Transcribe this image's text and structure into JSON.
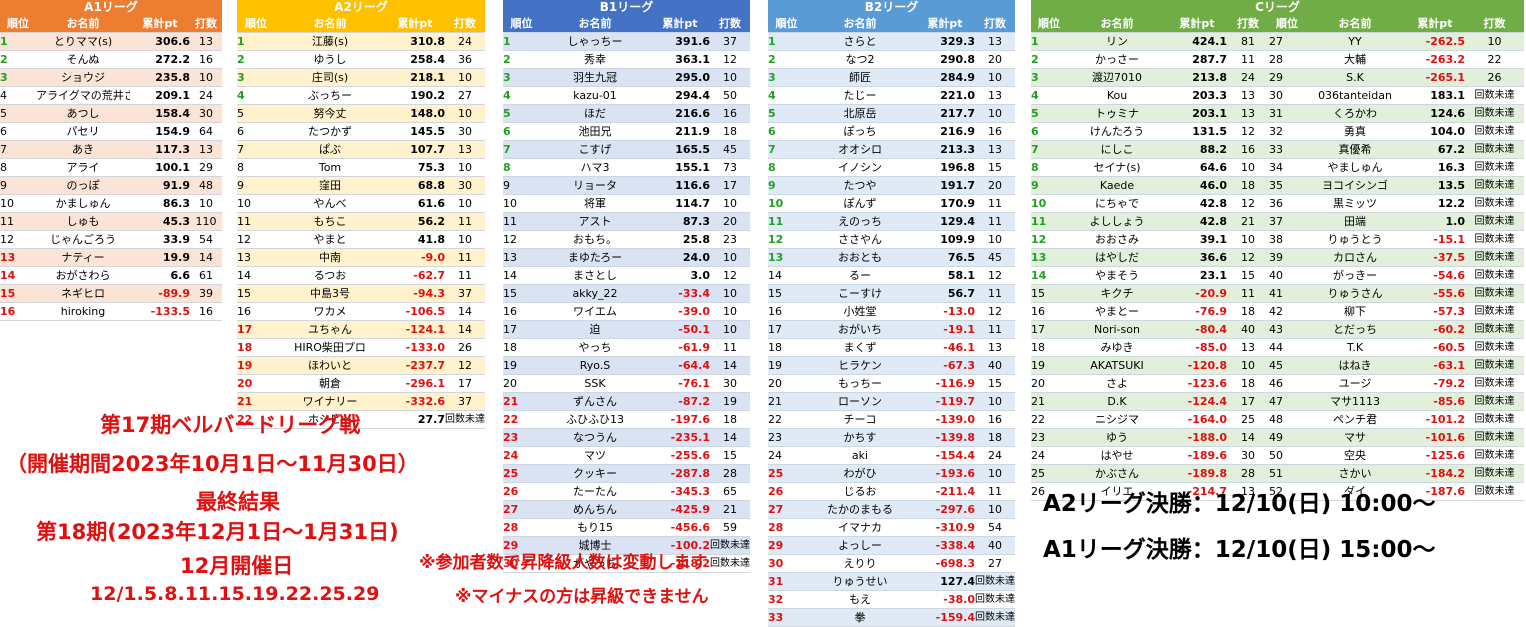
{
  "leagues": {
    "a1": {
      "title": "A1リーグ",
      "headers": [
        "順位",
        "お名前",
        "累計pt",
        "打数"
      ],
      "colors": {
        "header": "#ed7d31",
        "stripe": "#fbe4d5"
      },
      "rows": [
        [
          "1",
          "とりママ(s)",
          "306.6",
          "13"
        ],
        [
          "2",
          "そんぬ",
          "272.2",
          "16"
        ],
        [
          "3",
          "ショウジ",
          "235.8",
          "10"
        ],
        [
          "4",
          "アライグマの荒井さん",
          "209.1",
          "24"
        ],
        [
          "5",
          "あつし",
          "158.4",
          "30"
        ],
        [
          "6",
          "パセリ",
          "154.9",
          "64"
        ],
        [
          "7",
          "あき",
          "117.3",
          "13"
        ],
        [
          "8",
          "アライ",
          "100.1",
          "29"
        ],
        [
          "9",
          "のっぽ",
          "91.9",
          "48"
        ],
        [
          "10",
          "かましゅん",
          "86.3",
          "10"
        ],
        [
          "11",
          "しゅも",
          "45.3",
          "110"
        ],
        [
          "12",
          "じゃんごろう",
          "33.9",
          "54"
        ],
        [
          "13",
          "ナティー",
          "19.9",
          "14"
        ],
        [
          "14",
          "おがさわら",
          "6.6",
          "61"
        ],
        [
          "15",
          "ネギヒロ",
          "-89.9",
          "39"
        ],
        [
          "16",
          "hiroking",
          "-133.5",
          "16"
        ]
      ]
    },
    "a2": {
      "title": "A2リーグ",
      "headers": [
        "順位",
        "お名前",
        "累計pt",
        "打数"
      ],
      "colors": {
        "header": "#ffc000",
        "stripe": "#fff2cc"
      },
      "rows": [
        [
          "1",
          "江藤(s)",
          "310.8",
          "24"
        ],
        [
          "2",
          "ゆうし",
          "258.4",
          "36"
        ],
        [
          "3",
          "庄司(s)",
          "218.1",
          "10"
        ],
        [
          "4",
          "ぶっちー",
          "190.2",
          "27"
        ],
        [
          "5",
          "努今丈",
          "148.0",
          "10"
        ],
        [
          "6",
          "たつかず",
          "145.5",
          "30"
        ],
        [
          "7",
          "ぱぶ",
          "107.7",
          "13"
        ],
        [
          "8",
          "Tom",
          "75.3",
          "10"
        ],
        [
          "9",
          "窪田",
          "68.8",
          "30"
        ],
        [
          "10",
          "やんべ",
          "61.6",
          "10"
        ],
        [
          "11",
          "もちこ",
          "56.2",
          "11"
        ],
        [
          "12",
          "やまと",
          "41.8",
          "10"
        ],
        [
          "13",
          "中南",
          "-9.0",
          "11"
        ],
        [
          "14",
          "るつお",
          "-62.7",
          "11"
        ],
        [
          "15",
          "中島3号",
          "-94.3",
          "37"
        ],
        [
          "16",
          "ワカメ",
          "-106.5",
          "14"
        ],
        [
          "17",
          "ユちゃん",
          "-124.1",
          "14"
        ],
        [
          "18",
          "HIRO柴田プロ",
          "-133.0",
          "26"
        ],
        [
          "19",
          "ほわいと",
          "-237.7",
          "12"
        ],
        [
          "20",
          "朝倉",
          "-296.1",
          "17"
        ],
        [
          "21",
          "ワイナリー",
          "-332.6",
          "37"
        ],
        [
          "22",
          "ホシピー",
          "27.7",
          "回数未達"
        ]
      ]
    },
    "b1": {
      "title": "B1リーグ",
      "headers": [
        "順位",
        "お名前",
        "累計pt",
        "打数"
      ],
      "colors": {
        "header": "#4472c4",
        "stripe": "#dae3f3"
      },
      "rows": [
        [
          "1",
          "しゃっちー",
          "391.6",
          "37"
        ],
        [
          "2",
          "秀幸",
          "363.1",
          "12"
        ],
        [
          "3",
          "羽生九冠",
          "295.0",
          "10"
        ],
        [
          "4",
          "kazu-01",
          "294.4",
          "50"
        ],
        [
          "5",
          "ほだ",
          "216.6",
          "16"
        ],
        [
          "6",
          "池田兄",
          "211.9",
          "18"
        ],
        [
          "7",
          "こすげ",
          "165.5",
          "45"
        ],
        [
          "8",
          "ハマ3",
          "155.1",
          "73"
        ],
        [
          "9",
          "リョータ",
          "116.6",
          "17"
        ],
        [
          "10",
          "将軍",
          "114.7",
          "10"
        ],
        [
          "11",
          "アスト",
          "87.3",
          "20"
        ],
        [
          "12",
          "おもち。",
          "25.8",
          "23"
        ],
        [
          "13",
          "まゆたろー",
          "24.0",
          "10"
        ],
        [
          "14",
          "まさとし",
          "3.0",
          "12"
        ],
        [
          "15",
          "akky_22",
          "-33.4",
          "10"
        ],
        [
          "16",
          "ワイエム",
          "-39.0",
          "10"
        ],
        [
          "17",
          "迫",
          "-50.1",
          "10"
        ],
        [
          "18",
          "やっち",
          "-61.9",
          "11"
        ],
        [
          "19",
          "Ryo.S",
          "-64.4",
          "14"
        ],
        [
          "20",
          "SSK",
          "-76.1",
          "30"
        ],
        [
          "21",
          "ずんさん",
          "-87.2",
          "19"
        ],
        [
          "22",
          "ふひふひ13",
          "-197.6",
          "18"
        ],
        [
          "23",
          "なつうん",
          "-235.1",
          "14"
        ],
        [
          "24",
          "マツ",
          "-255.6",
          "15"
        ],
        [
          "25",
          "クッキー",
          "-287.8",
          "28"
        ],
        [
          "26",
          "たーたん",
          "-345.3",
          "65"
        ],
        [
          "27",
          "めんちん",
          "-425.9",
          "21"
        ],
        [
          "28",
          "もり15",
          "-456.6",
          "59"
        ],
        [
          "29",
          "城博士",
          "-100.2",
          "回数未達"
        ],
        [
          "30",
          "がやっち",
          "-118.2",
          "回数未達"
        ]
      ]
    },
    "b2": {
      "title": "B2リーグ",
      "headers": [
        "順位",
        "お名前",
        "累計pt",
        "打数"
      ],
      "colors": {
        "header": "#5b9bd5",
        "stripe": "#deebf7"
      },
      "rows": [
        [
          "1",
          "さらと",
          "329.3",
          "13"
        ],
        [
          "2",
          "なつ2",
          "290.8",
          "20"
        ],
        [
          "3",
          "師匠",
          "284.9",
          "10"
        ],
        [
          "4",
          "たじー",
          "221.0",
          "13"
        ],
        [
          "5",
          "北原岳",
          "217.7",
          "10"
        ],
        [
          "6",
          "ぽっち",
          "216.9",
          "16"
        ],
        [
          "7",
          "オオシロ",
          "213.3",
          "13"
        ],
        [
          "8",
          "イノシン",
          "196.8",
          "15"
        ],
        [
          "9",
          "たつや",
          "191.7",
          "20"
        ],
        [
          "10",
          "ぽんず",
          "170.9",
          "11"
        ],
        [
          "11",
          "えのっち",
          "129.4",
          "11"
        ],
        [
          "12",
          "ささやん",
          "109.9",
          "10"
        ],
        [
          "13",
          "おおとも",
          "76.5",
          "45"
        ],
        [
          "14",
          "るー",
          "58.1",
          "12"
        ],
        [
          "15",
          "こーすけ",
          "56.7",
          "11"
        ],
        [
          "16",
          "小姓堂",
          "-13.0",
          "12"
        ],
        [
          "17",
          "おがいち",
          "-19.1",
          "11"
        ],
        [
          "18",
          "まくず",
          "-46.1",
          "13"
        ],
        [
          "19",
          "ヒラケン",
          "-67.3",
          "40"
        ],
        [
          "20",
          "もっちー",
          "-116.9",
          "15"
        ],
        [
          "21",
          "ローソン",
          "-119.7",
          "10"
        ],
        [
          "22",
          "チーコ",
          "-139.0",
          "16"
        ],
        [
          "23",
          "かちす",
          "-139.8",
          "18"
        ],
        [
          "24",
          "aki",
          "-154.4",
          "24"
        ],
        [
          "25",
          "わがひ",
          "-193.6",
          "10"
        ],
        [
          "26",
          "じるお",
          "-211.4",
          "11"
        ],
        [
          "27",
          "たかのまもる",
          "-297.6",
          "10"
        ],
        [
          "28",
          "イマナカ",
          "-310.9",
          "54"
        ],
        [
          "29",
          "よっしー",
          "-338.4",
          "40"
        ],
        [
          "30",
          "えりり",
          "-698.3",
          "27"
        ],
        [
          "31",
          "りゅうせい",
          "127.4",
          "回数未達"
        ],
        [
          "32",
          "もえ",
          "-38.0",
          "回数未達"
        ],
        [
          "33",
          "拳",
          "-159.4",
          "回数未達"
        ]
      ]
    },
    "c": {
      "title": "Cリーグ",
      "headers": [
        "順位",
        "お名前",
        "累計pt",
        "打数",
        "順位",
        "お名前",
        "累計pt",
        "打数"
      ],
      "colors": {
        "header": "#70ad47",
        "stripe": "#e2efda"
      },
      "rows": [
        [
          "1",
          "リン",
          "424.1",
          "81",
          "27",
          "YY",
          "-262.5",
          "10"
        ],
        [
          "2",
          "かっさー",
          "287.7",
          "11",
          "28",
          "大輔",
          "-263.2",
          "22"
        ],
        [
          "3",
          "渡辺7010",
          "213.8",
          "24",
          "29",
          "S.K",
          "-265.1",
          "26"
        ],
        [
          "4",
          "Kou",
          "203.3",
          "13",
          "30",
          "036tanteidan",
          "183.1",
          "回数未達"
        ],
        [
          "5",
          "トゥミナ",
          "203.1",
          "13",
          "31",
          "くろかわ",
          "124.6",
          "回数未達"
        ],
        [
          "6",
          "けんたろう",
          "131.5",
          "12",
          "32",
          "勇真",
          "104.0",
          "回数未達"
        ],
        [
          "7",
          "にしこ",
          "88.2",
          "16",
          "33",
          "真優希",
          "67.2",
          "回数未達"
        ],
        [
          "8",
          "セイナ(s)",
          "64.6",
          "10",
          "34",
          "やましゅん",
          "16.3",
          "回数未達"
        ],
        [
          "9",
          "Kaede",
          "46.0",
          "18",
          "35",
          "ヨコイシンゴ",
          "13.5",
          "回数未達"
        ],
        [
          "10",
          "にちゃで",
          "42.8",
          "12",
          "36",
          "黒ミッツ",
          "12.2",
          "回数未達"
        ],
        [
          "11",
          "よししょう",
          "42.8",
          "21",
          "37",
          "田端",
          "1.0",
          "回数未達"
        ],
        [
          "12",
          "おおさみ",
          "39.1",
          "10",
          "38",
          "りゅうとう",
          "-15.1",
          "回数未達"
        ],
        [
          "13",
          "はやしだ",
          "36.6",
          "12",
          "39",
          "カロさん",
          "-37.5",
          "回数未達"
        ],
        [
          "14",
          "やまそう",
          "23.1",
          "15",
          "40",
          "がっきー",
          "-54.6",
          "回数未達"
        ],
        [
          "15",
          "キクチ",
          "-20.9",
          "11",
          "41",
          "りゅうさん",
          "-55.6",
          "回数未達"
        ],
        [
          "16",
          "やまとー",
          "-76.9",
          "18",
          "42",
          "柳下",
          "-57.3",
          "回数未達"
        ],
        [
          "17",
          "Nori-son",
          "-80.4",
          "40",
          "43",
          "とだっち",
          "-60.2",
          "回数未達"
        ],
        [
          "18",
          "みゆき",
          "-85.0",
          "13",
          "44",
          "T.K",
          "-60.5",
          "回数未達"
        ],
        [
          "19",
          "AKATSUKI",
          "-120.8",
          "10",
          "45",
          "はねき",
          "-63.1",
          "回数未達"
        ],
        [
          "20",
          "さよ",
          "-123.6",
          "18",
          "46",
          "ユージ",
          "-79.2",
          "回数未達"
        ],
        [
          "21",
          "D.K",
          "-124.4",
          "17",
          "47",
          "マサ1113",
          "-85.6",
          "回数未達"
        ],
        [
          "22",
          "ニシジマ",
          "-164.0",
          "25",
          "48",
          "ペンチ君",
          "-101.2",
          "回数未達"
        ],
        [
          "23",
          "ゆう",
          "-188.0",
          "14",
          "49",
          "マサ",
          "-101.6",
          "回数未達"
        ],
        [
          "24",
          "はやせ",
          "-189.6",
          "30",
          "50",
          "空央",
          "-125.6",
          "回数未達"
        ],
        [
          "25",
          "かぶさん",
          "-189.8",
          "28",
          "51",
          "さかい",
          "-184.2",
          "回数未達"
        ],
        [
          "26",
          "イリエ",
          "-214.7",
          "13",
          "52",
          "ダイ",
          "-187.6",
          "回数未達"
        ]
      ]
    }
  },
  "announcement": {
    "line1": "第17期ベルバードリーグ戦",
    "line2": "（開催期間2023年10月1日～11月30日）",
    "line3": "最終結果",
    "line4": "第18期(2023年12月1日～1月31日)",
    "line5": "12月開催日",
    "line6": "12/1.5.8.11.15.19.22.25.29"
  },
  "notes": {
    "note1": "※参加者数で昇降級人数は変動します",
    "note2": "※マイナスの方は昇級できません"
  },
  "finals": {
    "a2": "A2リーグ決勝：12/10(日) 10:00～",
    "a1": "A1リーグ決勝：12/10(日) 15:00～"
  },
  "text_color": "#e01010"
}
